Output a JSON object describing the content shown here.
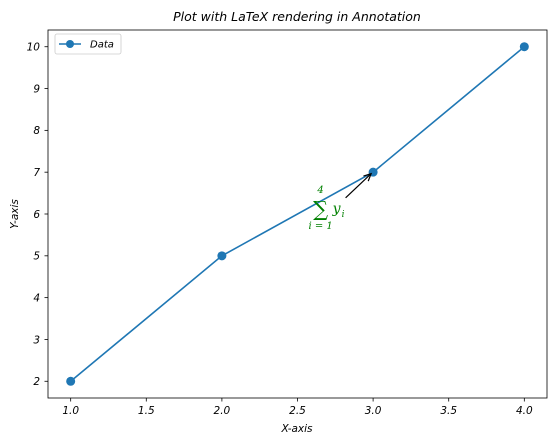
{
  "chart_data": {
    "type": "line",
    "title": "Plot with LaTeX rendering in Annotation",
    "xlabel": "X-axis",
    "ylabel": "Y-axis",
    "xlim": [
      0.85,
      4.15
    ],
    "ylim": [
      1.6,
      10.4
    ],
    "x_ticks": [
      "1.0",
      "1.5",
      "2.0",
      "2.5",
      "3.0",
      "3.5",
      "4.0"
    ],
    "y_ticks": [
      "2",
      "3",
      "4",
      "5",
      "6",
      "7",
      "8",
      "9",
      "10"
    ],
    "grid": false,
    "legend_placement": "top-left",
    "series": [
      {
        "name": "Data",
        "x": [
          1,
          2,
          3,
          4
        ],
        "y": [
          2,
          5,
          7,
          10
        ],
        "color": "#1f77b4"
      }
    ],
    "annotation": {
      "text_sum_upper": "4",
      "text_sum_symbol": "∑",
      "text_sum_lower": "i = 1",
      "text_term": "y",
      "text_term_sub": "i",
      "text_x": 2.6,
      "text_y": 6.1,
      "points_to": [
        3,
        7
      ],
      "color": "#008000"
    }
  }
}
